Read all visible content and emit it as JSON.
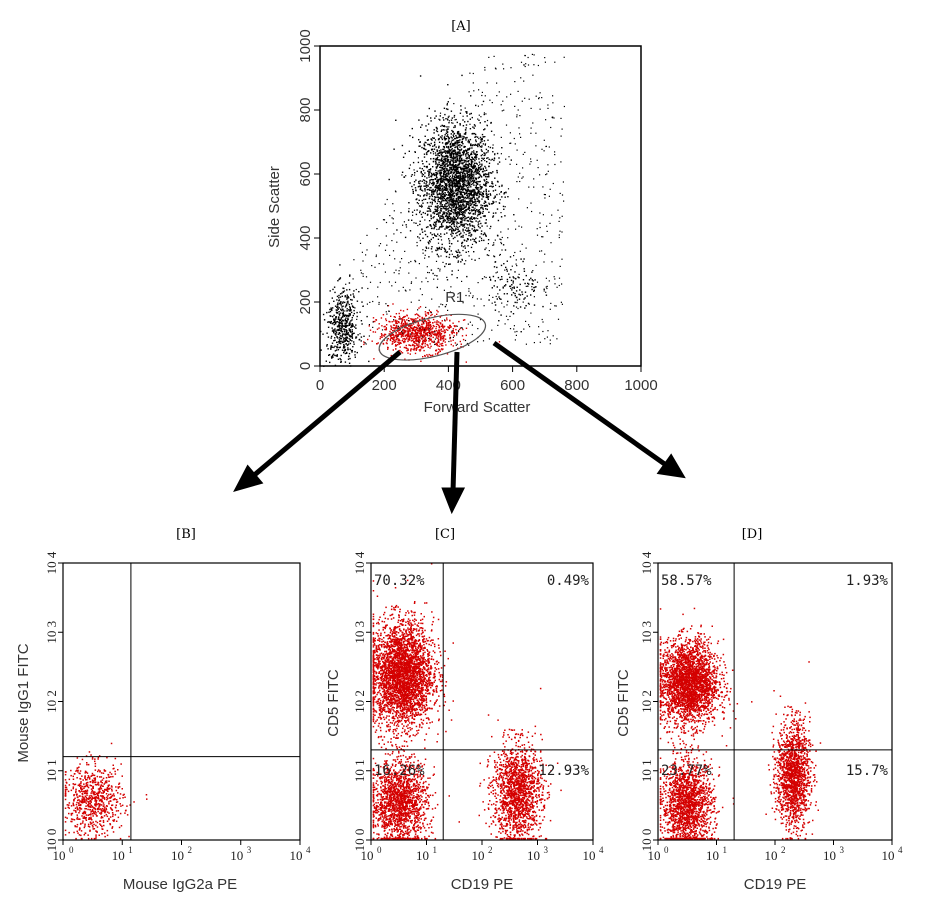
{
  "colors": {
    "dots": "#000000",
    "gated": "#d40000",
    "axis": "#000000"
  },
  "chart_data": [
    {
      "panel_label": "[A]",
      "type": "scatter",
      "xlabel": "Forward Scatter",
      "ylabel": "Side Scatter",
      "xlim": [
        0,
        1000
      ],
      "ylim": [
        0,
        1000
      ],
      "xticks": [
        "0",
        "200",
        "400",
        "600",
        "800",
        "1000"
      ],
      "yticks": [
        "0",
        "200",
        "400",
        "600",
        "800",
        "1000"
      ],
      "gate": {
        "name": "R1",
        "center": [
          350,
          90
        ],
        "rx": 170,
        "ry": 60
      },
      "clusters": [
        {
          "name": "",
          "x": 420,
          "y": 570,
          "sx": 55,
          "sy": 95,
          "n": 2600,
          "color": "dots"
        },
        {
          "name": "",
          "x": 600,
          "y": 250,
          "sx": 40,
          "sy": 45,
          "n": 120,
          "color": "dots"
        },
        {
          "name": "",
          "x": 70,
          "y": 120,
          "sx": 25,
          "sy": 60,
          "n": 500,
          "color": "dots"
        },
        {
          "name": "",
          "x": 300,
          "y": 105,
          "sx": 60,
          "sy": 30,
          "n": 900,
          "color": "gated"
        }
      ]
    },
    {
      "panel_label": "[B]",
      "type": "scatter",
      "xlabel": "Mouse IgG2a PE",
      "ylabel": "Mouse IgG1 FITC",
      "scale": "log",
      "xlim": [
        1,
        10000
      ],
      "ylim": [
        1,
        10000
      ],
      "quadrant_lines": {
        "x": 14,
        "y": 16
      },
      "quadrant_pct": [],
      "clusters": [
        {
          "name": "",
          "x": 3.2,
          "y": 3.8,
          "sx": 0.25,
          "sy": 0.25,
          "n": 700,
          "color": "gated"
        }
      ]
    },
    {
      "panel_label": "[C]",
      "type": "scatter",
      "xlabel": "CD19 PE",
      "ylabel": "CD5 FITC",
      "scale": "log",
      "xlim": [
        1,
        10000
      ],
      "ylim": [
        1,
        10000
      ],
      "quadrant_lines": {
        "x": 20,
        "y": 20
      },
      "quadrant_pct": [
        {
          "quadrant": "upper-left",
          "text": "70.32%"
        },
        {
          "quadrant": "upper-right",
          "text": "0.49%"
        },
        {
          "quadrant": "lower-left",
          "text": "16.26%"
        },
        {
          "quadrant": "lower-right",
          "text": "12.93%"
        }
      ],
      "clusters": [
        {
          "name": "",
          "x": 3.5,
          "y": 250,
          "sx": 0.28,
          "sy": 0.38,
          "n": 3200,
          "color": "gated"
        },
        {
          "name": "",
          "x": 3.2,
          "y": 3.5,
          "sx": 0.25,
          "sy": 0.3,
          "n": 1600,
          "color": "gated"
        },
        {
          "name": "",
          "x": 420,
          "y": 5,
          "sx": 0.22,
          "sy": 0.35,
          "n": 1500,
          "color": "gated"
        }
      ]
    },
    {
      "panel_label": "[D]",
      "type": "scatter",
      "xlabel": "CD19 PE",
      "ylabel": "CD5 FITC",
      "scale": "log",
      "xlim": [
        1,
        10000
      ],
      "ylim": [
        1,
        10000
      ],
      "quadrant_lines": {
        "x": 20,
        "y": 20
      },
      "quadrant_pct": [
        {
          "quadrant": "upper-left",
          "text": "58.57%"
        },
        {
          "quadrant": "upper-right",
          "text": "1.93%"
        },
        {
          "quadrant": "lower-left",
          "text": "23.77%"
        },
        {
          "quadrant": "lower-right",
          "text": "15.7%"
        }
      ],
      "clusters": [
        {
          "name": "",
          "x": 3.3,
          "y": 190,
          "sx": 0.25,
          "sy": 0.3,
          "n": 2600,
          "color": "gated"
        },
        {
          "name": "",
          "x": 3.1,
          "y": 3.2,
          "sx": 0.22,
          "sy": 0.32,
          "n": 1700,
          "color": "gated"
        },
        {
          "name": "",
          "x": 200,
          "y": 9,
          "sx": 0.14,
          "sy": 0.38,
          "n": 1500,
          "color": "gated"
        }
      ]
    }
  ]
}
